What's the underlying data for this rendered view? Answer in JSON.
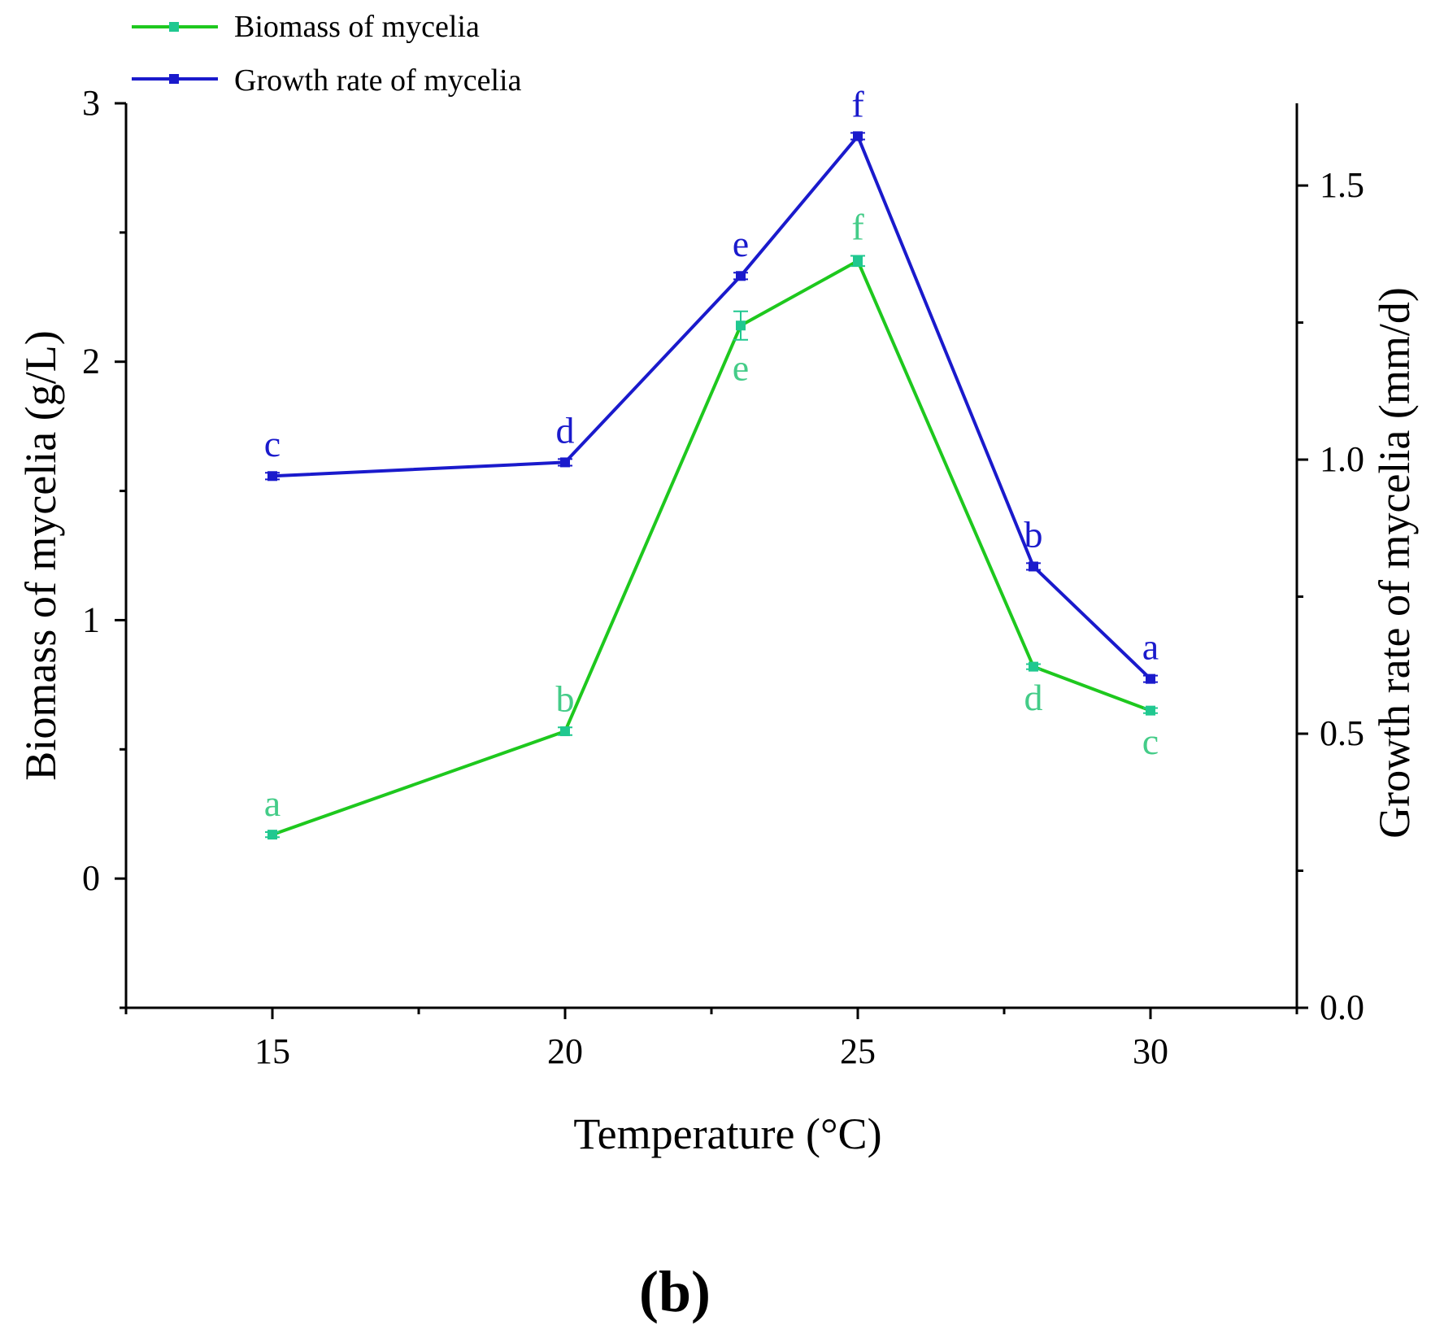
{
  "panel_label": "(b)",
  "chart_data": {
    "type": "line",
    "title": "",
    "xlabel": "Temperature (°C)",
    "ylabel": "Biomass of mycelia (g/L)",
    "y2label": "Growth rate of mycelia (mm/d)",
    "xlim": [
      12.5,
      32.5
    ],
    "ylim": [
      -0.5,
      3.0
    ],
    "y2lim": [
      0.0,
      1.65
    ],
    "x_ticks": [
      15,
      20,
      25,
      30
    ],
    "x_tick_labels": [
      "15",
      "20",
      "25",
      "30"
    ],
    "x_minor_ticks": [
      12.5,
      17.5,
      22.5,
      27.5,
      32.5
    ],
    "y_ticks": [
      0,
      1,
      2,
      3
    ],
    "y_tick_labels": [
      "0",
      "1",
      "2",
      "3"
    ],
    "y_minor_ticks": [
      -0.5,
      0.5,
      1.5,
      2.5
    ],
    "y2_ticks": [
      0.0,
      0.5,
      1.0,
      1.5
    ],
    "y2_tick_labels": [
      "0.0",
      "0.5",
      "1.0",
      "1.5"
    ],
    "y2_minor_ticks": [
      0.25,
      0.75,
      1.25
    ],
    "legend_position": "top-left",
    "series": [
      {
        "name": "Biomass of mycelia",
        "axis": "left",
        "color": "#1ec81e",
        "marker_color": "#20c890",
        "label_color": "#44cc88",
        "x": [
          15,
          20,
          23,
          25,
          28,
          30
        ],
        "values": [
          0.17,
          0.57,
          2.14,
          2.39,
          0.82,
          0.65
        ],
        "errors": [
          0.01,
          0.015,
          0.055,
          0.02,
          0.01,
          0.01
        ],
        "letters": [
          "a",
          "b",
          "e",
          "f",
          "d",
          "c"
        ],
        "letter_side": [
          "above",
          "above",
          "below",
          "above",
          "below",
          "below"
        ]
      },
      {
        "name": "Growth rate of mycelia",
        "axis": "right",
        "color": "#1a1acc",
        "marker_color": "#1a1acc",
        "label_color": "#1a1acc",
        "x": [
          15,
          20,
          23,
          25,
          28,
          30
        ],
        "values": [
          0.97,
          0.995,
          1.335,
          1.59,
          0.805,
          0.6
        ],
        "errors": [
          0.006,
          0.006,
          0.006,
          0.006,
          0.006,
          0.006
        ],
        "letters": [
          "c",
          "d",
          "e",
          "f",
          "b",
          "a"
        ],
        "letter_side": [
          "above",
          "above",
          "above",
          "above",
          "above",
          "above"
        ]
      }
    ]
  }
}
